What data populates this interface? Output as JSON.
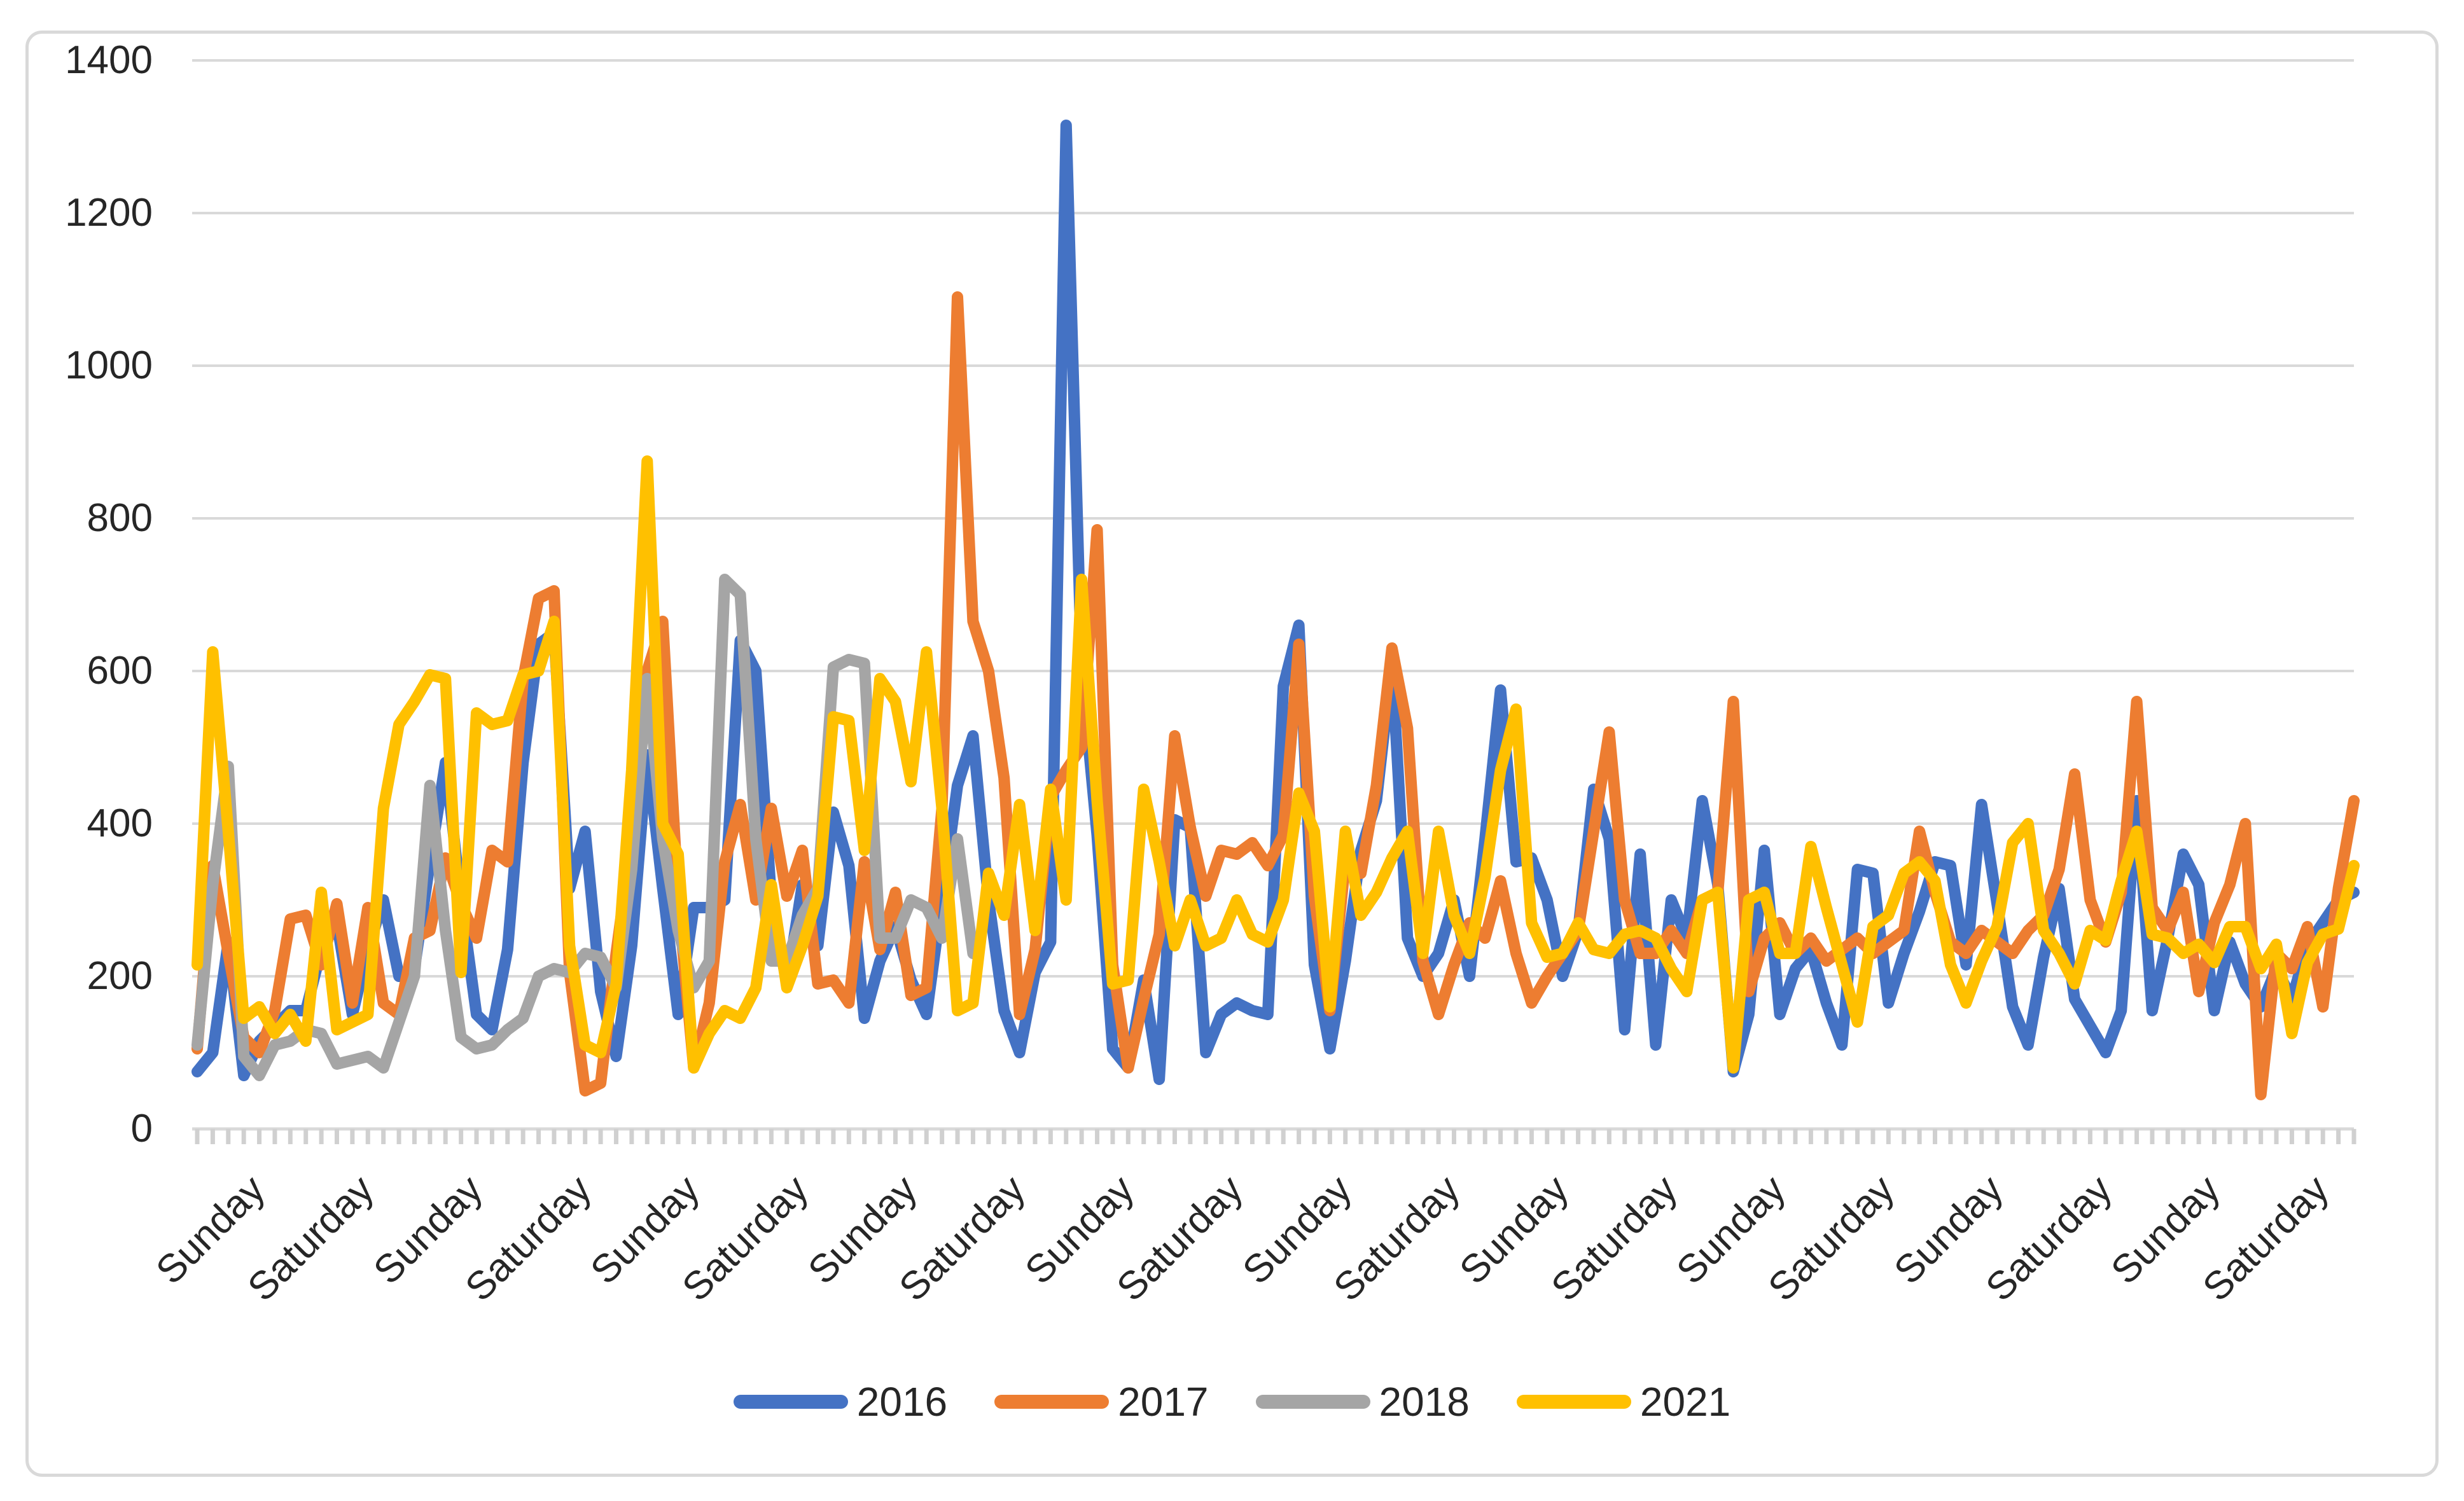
{
  "chart_data": {
    "type": "line",
    "title": "",
    "xlabel": "",
    "ylabel": "",
    "y_axis": {
      "min": 0,
      "max": 1400,
      "tick_step": 200,
      "tick_labels": [
        "0",
        "200",
        "400",
        "600",
        "800",
        "1000",
        "1200",
        "1400"
      ]
    },
    "x_labels": [
      "Sunday",
      "Saturday",
      "Sunday",
      "Saturday",
      "Sunday",
      "Saturday",
      "Sunday",
      "Saturday",
      "Sunday",
      "Saturday",
      "Sunday",
      "Saturday",
      "Sunday",
      "Saturday",
      "Sunday",
      "Saturday",
      "Sunday",
      "Saturday",
      "Sunday",
      "Saturday"
    ],
    "x_label_interval_points": 7,
    "n_points": 140,
    "grid": "horizontal",
    "gridline_color": "#d9d9d9",
    "axis_color": "#d0d0d0",
    "legend_position": "bottom",
    "series": [
      {
        "name": "2016",
        "color": "#4472c4",
        "values": [
          75,
          100,
          245,
          70,
          115,
          135,
          155,
          155,
          235,
          270,
          150,
          235,
          300,
          200,
          210,
          350,
          480,
          300,
          150,
          130,
          235,
          480,
          635,
          650,
          315,
          390,
          180,
          95,
          240,
          490,
          315,
          150,
          290,
          290,
          300,
          640,
          600,
          300,
          190,
          320,
          240,
          415,
          345,
          145,
          220,
          265,
          195,
          150,
          300,
          450,
          515,
          300,
          155,
          100,
          205,
          245,
          1315,
          600,
          385,
          105,
          80,
          195,
          65,
          405,
          395,
          100,
          150,
          165,
          155,
          150,
          580,
          660,
          215,
          105,
          220,
          365,
          430,
          610,
          250,
          200,
          230,
          300,
          200,
          380,
          575,
          350,
          355,
          300,
          200,
          260,
          445,
          380,
          130,
          360,
          110,
          300,
          250,
          430,
          320,
          75,
          150,
          365,
          150,
          210,
          235,
          165,
          110,
          340,
          335,
          165,
          230,
          285,
          350,
          345,
          215,
          425,
          295,
          160,
          110,
          225,
          315,
          170,
          135,
          100,
          155,
          430,
          155,
          250,
          360,
          320,
          155,
          245,
          190,
          160,
          210,
          170,
          240,
          270,
          300,
          310
        ]
      },
      {
        "name": "2017",
        "color": "#ed7d31",
        "values": [
          105,
          345,
          230,
          120,
          100,
          155,
          275,
          280,
          215,
          295,
          165,
          290,
          165,
          150,
          250,
          260,
          355,
          295,
          250,
          365,
          350,
          590,
          695,
          705,
          205,
          50,
          60,
          230,
          380,
          600,
          665,
          300,
          80,
          165,
          350,
          425,
          300,
          420,
          305,
          365,
          190,
          195,
          165,
          350,
          235,
          310,
          175,
          185,
          420,
          1090,
          665,
          600,
          460,
          150,
          235,
          435,
          470,
          500,
          785,
          215,
          80,
          170,
          255,
          515,
          395,
          305,
          365,
          360,
          375,
          345,
          385,
          635,
          305,
          155,
          350,
          335,
          450,
          630,
          525,
          220,
          150,
          215,
          270,
          250,
          325,
          230,
          165,
          200,
          230,
          260,
          390,
          520,
          300,
          230,
          230,
          260,
          230,
          300,
          310,
          560,
          180,
          250,
          270,
          230,
          250,
          220,
          235,
          250,
          230,
          245,
          260,
          390,
          310,
          245,
          230,
          260,
          245,
          230,
          260,
          280,
          340,
          465,
          300,
          245,
          310,
          560,
          290,
          260,
          310,
          180,
          270,
          320,
          400,
          45,
          230,
          210,
          265,
          160,
          315,
          430
        ]
      },
      {
        "name": "2018",
        "color": "#a5a5a5",
        "values": [
          110,
          320,
          475,
          95,
          70,
          110,
          115,
          130,
          125,
          85,
          90,
          95,
          80,
          140,
          200,
          450,
          260,
          120,
          105,
          110,
          130,
          145,
          200,
          210,
          205,
          230,
          225,
          185,
          340,
          590,
          380,
          260,
          185,
          220,
          720,
          700,
          380,
          220,
          220,
          280,
          315,
          605,
          615,
          610,
          250,
          250,
          300,
          290,
          250,
          380,
          230
        ]
      },
      {
        "name": "2021",
        "color": "#ffc000",
        "values": [
          215,
          625,
          390,
          145,
          160,
          125,
          150,
          115,
          310,
          130,
          140,
          150,
          420,
          530,
          560,
          595,
          590,
          205,
          545,
          530,
          535,
          595,
          600,
          665,
          240,
          110,
          100,
          190,
          470,
          875,
          400,
          360,
          80,
          125,
          155,
          145,
          185,
          320,
          185,
          240,
          305,
          540,
          535,
          365,
          590,
          560,
          455,
          625,
          420,
          155,
          165,
          335,
          280,
          425,
          260,
          445,
          300,
          720,
          430,
          190,
          195,
          445,
          350,
          240,
          300,
          240,
          250,
          300,
          255,
          245,
          300,
          440,
          390,
          160,
          390,
          280,
          310,
          355,
          390,
          230,
          390,
          280,
          230,
          330,
          470,
          550,
          270,
          225,
          230,
          270,
          235,
          230,
          255,
          260,
          250,
          210,
          180,
          300,
          310,
          80,
          300,
          310,
          230,
          230,
          370,
          290,
          215,
          140,
          265,
          280,
          335,
          350,
          325,
          215,
          165,
          220,
          265,
          375,
          400,
          260,
          230,
          190,
          260,
          247,
          325,
          390,
          255,
          250,
          230,
          242,
          218,
          265,
          265,
          210,
          242,
          125,
          218,
          255,
          262,
          345
        ]
      }
    ]
  },
  "legend": {
    "items": [
      "2016",
      "2017",
      "2018",
      "2021"
    ]
  }
}
